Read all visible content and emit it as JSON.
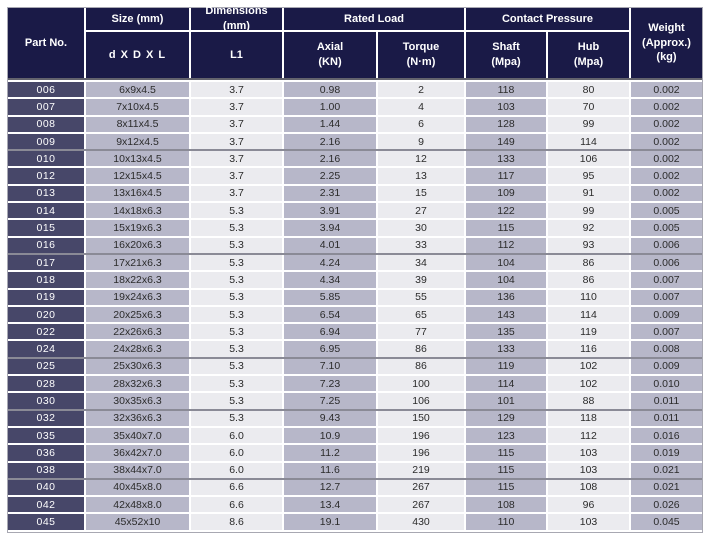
{
  "table": {
    "header": {
      "part_no": "Part No.",
      "size_group": "Size (mm)",
      "size_sub": "d X D X L",
      "dims_group": "Dimensions (mm)",
      "dims_sub": "L1",
      "rated_load_group": "Rated Load",
      "axial_line1": "Axial",
      "axial_line2": "(KN)",
      "torque_line1": "Torque",
      "torque_line2": "(N·m)",
      "contact_group": "Contact Pressure",
      "shaft_line1": "Shaft",
      "shaft_line2": "(Mpa)",
      "hub_line1": "Hub",
      "hub_line2": "(Mpa)",
      "weight_line1": "Weight",
      "weight_line2": "(Approx.)",
      "weight_line3": "(kg)"
    },
    "columns_order": [
      "part_no",
      "size",
      "l1",
      "axial",
      "torque",
      "shaft",
      "hub",
      "weight"
    ],
    "rows": [
      {
        "part_no": "006",
        "size": "6x9x4.5",
        "l1": "3.7",
        "axial": "0.98",
        "torque": "2",
        "shaft": "118",
        "hub": "80",
        "weight": "0.002",
        "group_end": false
      },
      {
        "part_no": "007",
        "size": "7x10x4.5",
        "l1": "3.7",
        "axial": "1.00",
        "torque": "4",
        "shaft": "103",
        "hub": "70",
        "weight": "0.002",
        "group_end": false
      },
      {
        "part_no": "008",
        "size": "8x11x4.5",
        "l1": "3.7",
        "axial": "1.44",
        "torque": "6",
        "shaft": "128",
        "hub": "99",
        "weight": "0.002",
        "group_end": false
      },
      {
        "part_no": "009",
        "size": "9x12x4.5",
        "l1": "3.7",
        "axial": "2.16",
        "torque": "9",
        "shaft": "149",
        "hub": "114",
        "weight": "0.002",
        "group_end": true
      },
      {
        "part_no": "010",
        "size": "10x13x4.5",
        "l1": "3.7",
        "axial": "2.16",
        "torque": "12",
        "shaft": "133",
        "hub": "106",
        "weight": "0.002",
        "group_end": false
      },
      {
        "part_no": "012",
        "size": "12x15x4.5",
        "l1": "3.7",
        "axial": "2.25",
        "torque": "13",
        "shaft": "117",
        "hub": "95",
        "weight": "0.002",
        "group_end": false
      },
      {
        "part_no": "013",
        "size": "13x16x4.5",
        "l1": "3.7",
        "axial": "2.31",
        "torque": "15",
        "shaft": "109",
        "hub": "91",
        "weight": "0.002",
        "group_end": false
      },
      {
        "part_no": "014",
        "size": "14x18x6.3",
        "l1": "5.3",
        "axial": "3.91",
        "torque": "27",
        "shaft": "122",
        "hub": "99",
        "weight": "0.005",
        "group_end": false
      },
      {
        "part_no": "015",
        "size": "15x19x6.3",
        "l1": "5.3",
        "axial": "3.94",
        "torque": "30",
        "shaft": "115",
        "hub": "92",
        "weight": "0.005",
        "group_end": false
      },
      {
        "part_no": "016",
        "size": "16x20x6.3",
        "l1": "5.3",
        "axial": "4.01",
        "torque": "33",
        "shaft": "112",
        "hub": "93",
        "weight": "0.006",
        "group_end": true
      },
      {
        "part_no": "017",
        "size": "17x21x6.3",
        "l1": "5.3",
        "axial": "4.24",
        "torque": "34",
        "shaft": "104",
        "hub": "86",
        "weight": "0.006",
        "group_end": false
      },
      {
        "part_no": "018",
        "size": "18x22x6.3",
        "l1": "5.3",
        "axial": "4.34",
        "torque": "39",
        "shaft": "104",
        "hub": "86",
        "weight": "0.007",
        "group_end": false
      },
      {
        "part_no": "019",
        "size": "19x24x6.3",
        "l1": "5.3",
        "axial": "5.85",
        "torque": "55",
        "shaft": "136",
        "hub": "110",
        "weight": "0.007",
        "group_end": false
      },
      {
        "part_no": "020",
        "size": "20x25x6.3",
        "l1": "5.3",
        "axial": "6.54",
        "torque": "65",
        "shaft": "143",
        "hub": "114",
        "weight": "0.009",
        "group_end": false
      },
      {
        "part_no": "022",
        "size": "22x26x6.3",
        "l1": "5.3",
        "axial": "6.94",
        "torque": "77",
        "shaft": "135",
        "hub": "119",
        "weight": "0.007",
        "group_end": false
      },
      {
        "part_no": "024",
        "size": "24x28x6.3",
        "l1": "5.3",
        "axial": "6.95",
        "torque": "86",
        "shaft": "133",
        "hub": "116",
        "weight": "0.008",
        "group_end": true
      },
      {
        "part_no": "025",
        "size": "25x30x6.3",
        "l1": "5.3",
        "axial": "7.10",
        "torque": "86",
        "shaft": "119",
        "hub": "102",
        "weight": "0.009",
        "group_end": false
      },
      {
        "part_no": "028",
        "size": "28x32x6.3",
        "l1": "5.3",
        "axial": "7.23",
        "torque": "100",
        "shaft": "114",
        "hub": "102",
        "weight": "0.010",
        "group_end": false
      },
      {
        "part_no": "030",
        "size": "30x35x6.3",
        "l1": "5.3",
        "axial": "7.25",
        "torque": "106",
        "shaft": "101",
        "hub": "88",
        "weight": "0.011",
        "group_end": true
      },
      {
        "part_no": "032",
        "size": "32x36x6.3",
        "l1": "5.3",
        "axial": "9.43",
        "torque": "150",
        "shaft": "129",
        "hub": "118",
        "weight": "0.011",
        "group_end": false
      },
      {
        "part_no": "035",
        "size": "35x40x7.0",
        "l1": "6.0",
        "axial": "10.9",
        "torque": "196",
        "shaft": "123",
        "hub": "112",
        "weight": "0.016",
        "group_end": false
      },
      {
        "part_no": "036",
        "size": "36x42x7.0",
        "l1": "6.0",
        "axial": "11.2",
        "torque": "196",
        "shaft": "115",
        "hub": "103",
        "weight": "0.019",
        "group_end": false
      },
      {
        "part_no": "038",
        "size": "38x44x7.0",
        "l1": "6.0",
        "axial": "11.6",
        "torque": "219",
        "shaft": "115",
        "hub": "103",
        "weight": "0.021",
        "group_end": true
      },
      {
        "part_no": "040",
        "size": "40x45x8.0",
        "l1": "6.6",
        "axial": "12.7",
        "torque": "267",
        "shaft": "115",
        "hub": "108",
        "weight": "0.021",
        "group_end": false
      },
      {
        "part_no": "042",
        "size": "42x48x8.0",
        "l1": "6.6",
        "axial": "13.4",
        "torque": "267",
        "shaft": "108",
        "hub": "96",
        "weight": "0.026",
        "group_end": false
      },
      {
        "part_no": "045",
        "size": "45x52x10",
        "l1": "8.6",
        "axial": "19.1",
        "torque": "430",
        "shaft": "110",
        "hub": "103",
        "weight": "0.045",
        "group_end": false
      }
    ]
  },
  "colors": {
    "header_navy": "#1a1a47",
    "part_cell_navy": "#474769",
    "column_purple": "#b7b7c9",
    "column_light": "#ebebef",
    "text_dark": "#2b2b2b",
    "group_separator": "#8a8a96"
  }
}
